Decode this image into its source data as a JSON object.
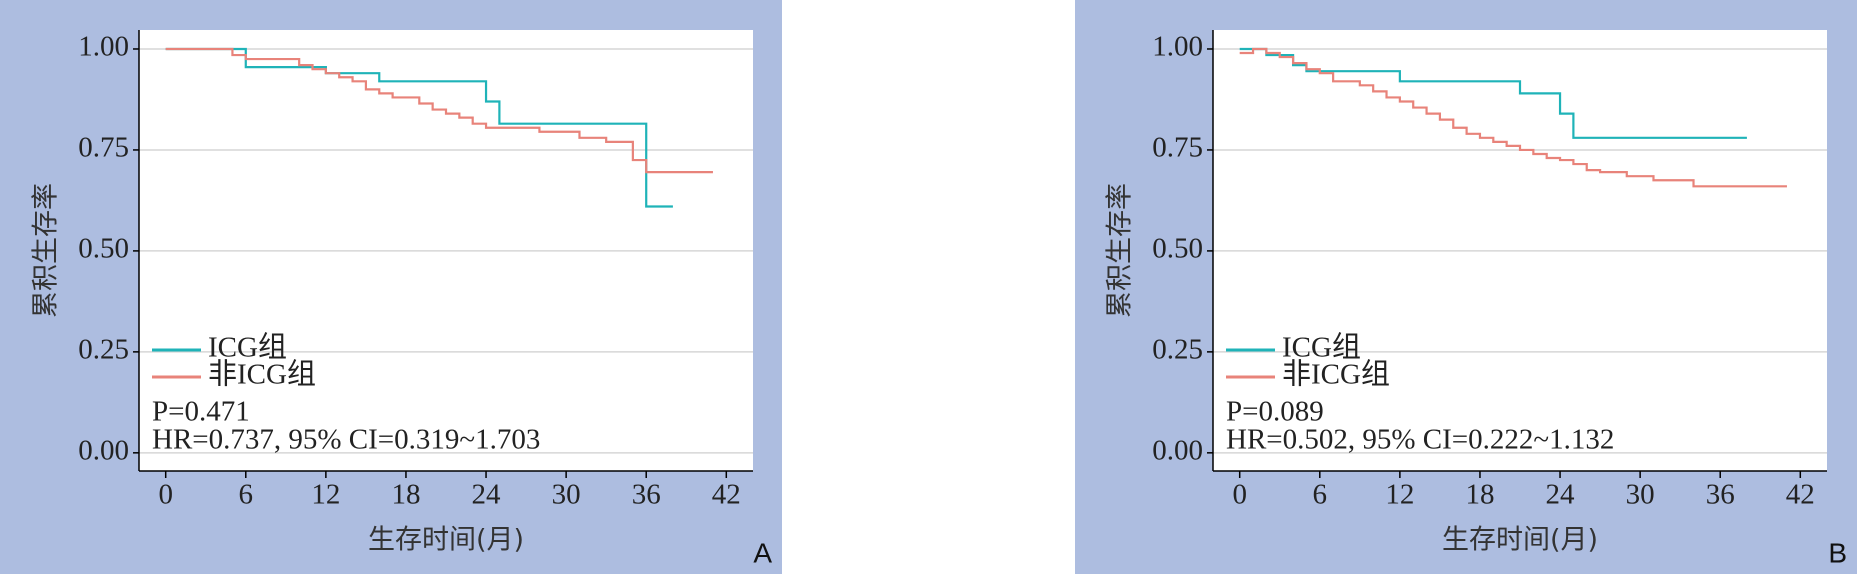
{
  "chart_data": [
    {
      "type": "line",
      "step": true,
      "panel_label": "A",
      "xlabel": "生存时间(月)",
      "ylabel": "累积生存率",
      "xlim": [
        -2,
        44
      ],
      "ylim": [
        -0.045,
        1.047
      ],
      "xticks": [
        0,
        6,
        12,
        18,
        24,
        30,
        36,
        42
      ],
      "yticks": [
        {
          "value": 0,
          "label": "0.00"
        },
        {
          "value": 0.25,
          "label": "0.25"
        },
        {
          "value": 0.5,
          "label": "0.50"
        },
        {
          "value": 0.75,
          "label": "0.75"
        },
        {
          "value": 1,
          "label": "1.00"
        }
      ],
      "grid": true,
      "legend": "lower left",
      "annotations": [
        "P=0.471",
        "HR=0.737, 95% CI=0.319~1.703"
      ],
      "series": [
        {
          "name": "ICG组",
          "color": "#1fb3b8",
          "x": [
            0,
            6,
            12,
            16,
            24,
            25,
            36,
            38
          ],
          "values": [
            1,
            0.955,
            0.94,
            0.92,
            0.87,
            0.815,
            0.61,
            0.61
          ]
        },
        {
          "name": "非ICG组",
          "color": "#e8837a",
          "x": [
            0,
            5,
            6,
            10,
            11,
            12,
            13,
            14,
            15,
            16,
            17,
            19,
            20,
            21,
            22,
            23,
            24,
            28,
            31,
            33,
            35,
            36,
            41
          ],
          "values": [
            1,
            0.985,
            0.975,
            0.96,
            0.95,
            0.94,
            0.93,
            0.92,
            0.9,
            0.89,
            0.88,
            0.865,
            0.85,
            0.84,
            0.83,
            0.815,
            0.805,
            0.795,
            0.78,
            0.77,
            0.725,
            0.695,
            0.695
          ]
        }
      ]
    },
    {
      "type": "line",
      "step": true,
      "panel_label": "B",
      "xlabel": "生存时间(月)",
      "ylabel": "累积生存率",
      "xlim": [
        -2,
        44
      ],
      "ylim": [
        -0.045,
        1.047
      ],
      "xticks": [
        0,
        6,
        12,
        18,
        24,
        30,
        36,
        42
      ],
      "yticks": [
        {
          "value": 0,
          "label": "0.00"
        },
        {
          "value": 0.25,
          "label": "0.25"
        },
        {
          "value": 0.5,
          "label": "0.50"
        },
        {
          "value": 0.75,
          "label": "0.75"
        },
        {
          "value": 1,
          "label": "1.00"
        }
      ],
      "grid": true,
      "legend": "lower left",
      "annotations": [
        "P=0.089",
        "HR=0.502, 95% CI=0.222~1.132"
      ],
      "series": [
        {
          "name": "ICG组",
          "color": "#1fb3b8",
          "x": [
            0,
            2,
            4,
            5,
            12,
            21,
            24,
            25,
            38
          ],
          "values": [
            1,
            0.985,
            0.96,
            0.945,
            0.92,
            0.89,
            0.84,
            0.78,
            0.78
          ]
        },
        {
          "name": "非ICG组",
          "color": "#e8837a",
          "x": [
            0,
            1,
            2,
            3,
            4,
            5,
            6,
            7,
            9,
            10,
            11,
            12,
            13,
            14,
            15,
            16,
            17,
            18,
            19,
            20,
            21,
            22,
            23,
            24,
            25,
            26,
            27,
            29,
            31,
            34,
            41
          ],
          "values": [
            0.99,
            1,
            0.99,
            0.98,
            0.965,
            0.95,
            0.94,
            0.92,
            0.91,
            0.895,
            0.88,
            0.87,
            0.855,
            0.84,
            0.825,
            0.805,
            0.79,
            0.78,
            0.77,
            0.76,
            0.75,
            0.74,
            0.73,
            0.725,
            0.715,
            0.7,
            0.695,
            0.685,
            0.675,
            0.66,
            0.66
          ]
        }
      ]
    }
  ]
}
